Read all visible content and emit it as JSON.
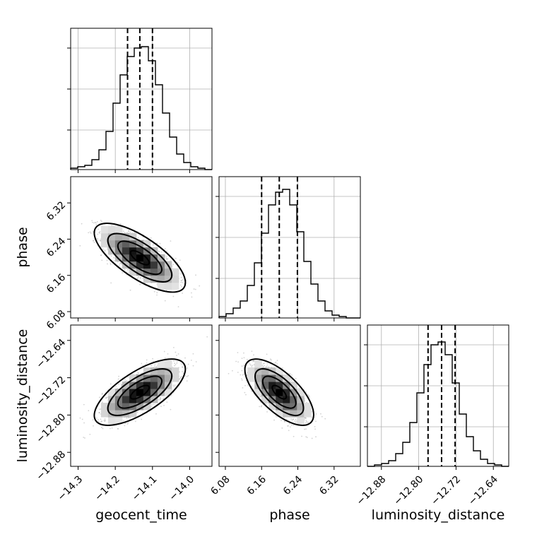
{
  "chart_data": {
    "type": "corner",
    "parameters": [
      {
        "name": "geocent_time",
        "mean": -14.134,
        "sigma": 0.05,
        "quantiles": [
          -14.167,
          -14.134,
          -14.1
        ],
        "ticks": [
          -14.3,
          -14.2,
          -14.1,
          -14.0
        ],
        "tick_labels": [
          "−14.3",
          "−14.2",
          "−14.1",
          "−14.0"
        ],
        "range": [
          -14.32,
          -13.94
        ]
      },
      {
        "name": "phase",
        "mean": 6.199,
        "sigma": 0.031,
        "quantiles": [
          6.16,
          6.199,
          6.239
        ],
        "ticks": [
          6.08,
          6.16,
          6.24,
          6.32
        ],
        "tick_labels": [
          "6.08",
          "6.16",
          "6.24",
          "6.32"
        ],
        "range": [
          6.066,
          6.378
        ]
      },
      {
        "name": "luminosity_distance",
        "mean": -12.751,
        "sigma": 0.029,
        "quantiles": [
          -12.78,
          -12.751,
          -12.722
        ],
        "ticks": [
          -12.88,
          -12.8,
          -12.72,
          -12.64
        ],
        "tick_labels": [
          "−12.88",
          "−12.80",
          "−12.72",
          "−12.64"
        ],
        "range": [
          -12.91,
          -12.607
        ]
      }
    ],
    "correlations": {
      "0-1": -0.72,
      "0-2": 0.7,
      "1-2": -0.68
    },
    "histograms": [
      {
        "param": "geocent_time",
        "counts": [
          1,
          2,
          3,
          7,
          14,
          27,
          47,
          67,
          80,
          86,
          87,
          77,
          60,
          40,
          23,
          11,
          5,
          2,
          1,
          0
        ]
      },
      {
        "param": "phase",
        "counts": [
          1,
          3,
          7,
          12,
          23,
          39,
          60,
          80,
          89,
          91,
          80,
          61,
          40,
          24,
          12,
          5,
          2,
          1,
          0,
          0
        ]
      },
      {
        "param": "luminosity_distance",
        "counts": [
          0,
          1,
          2,
          4,
          9,
          17,
          31,
          52,
          72,
          86,
          88,
          79,
          59,
          37,
          21,
          11,
          5,
          2,
          1,
          0
        ]
      }
    ],
    "grid": true,
    "colors": {
      "contour": "#000000",
      "points": "#b0b0b0",
      "grid": "#b0b0b0"
    }
  }
}
